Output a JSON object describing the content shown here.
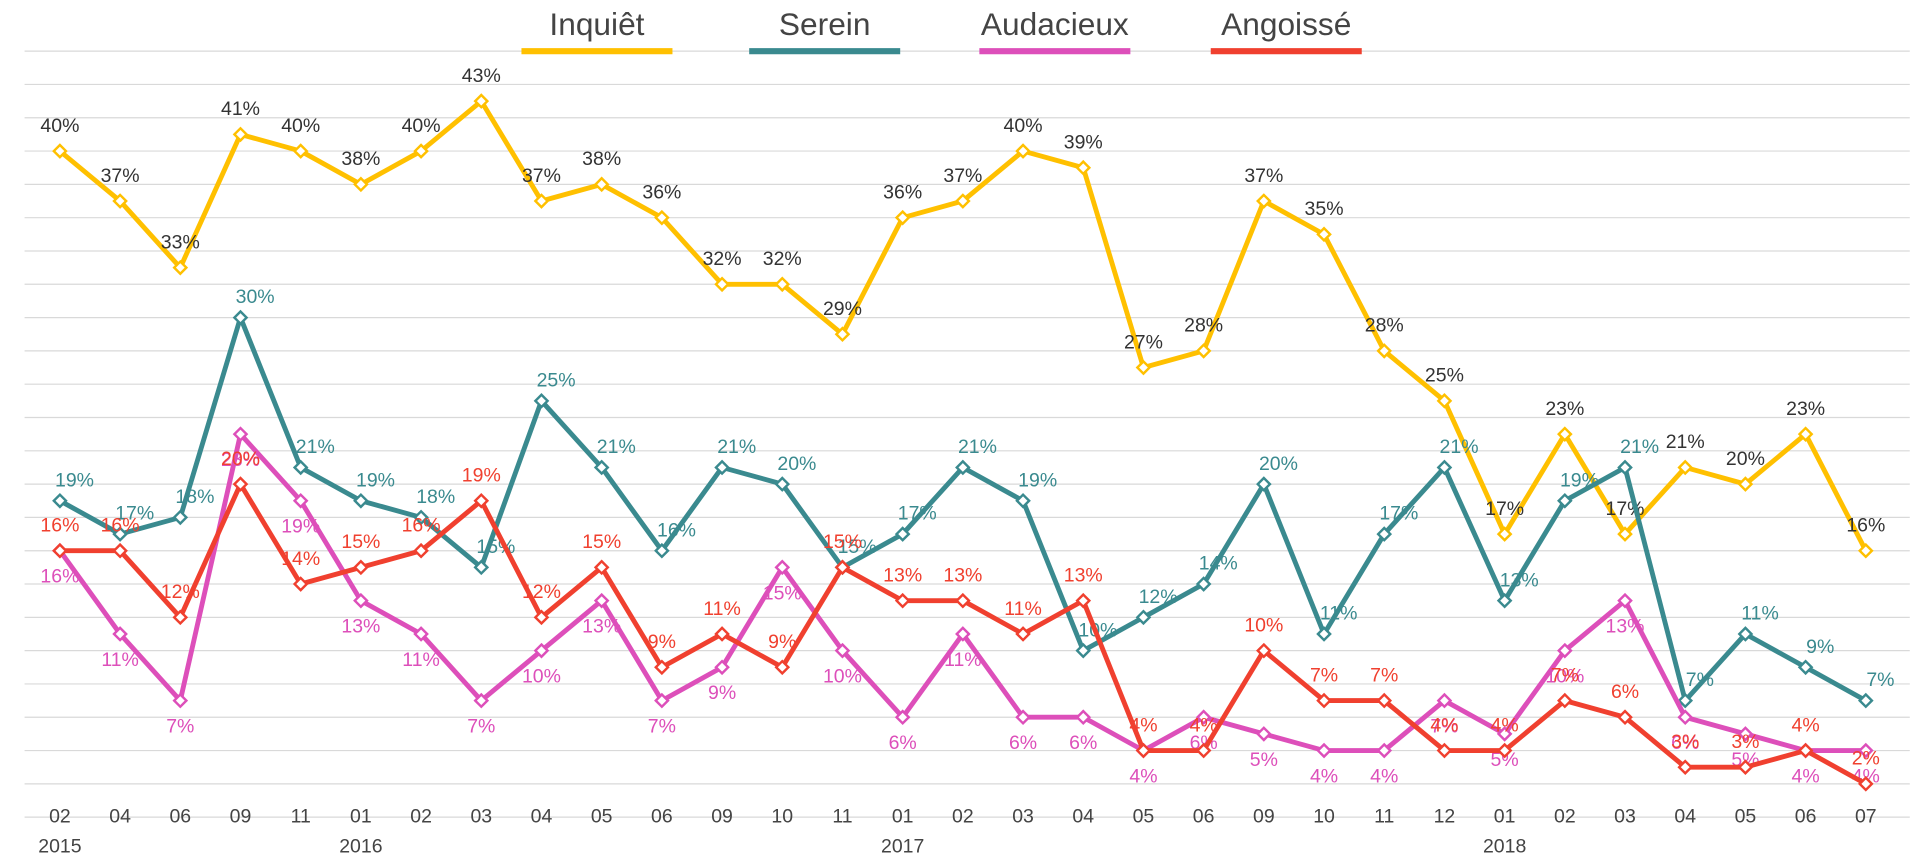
{
  "chart_data": {
    "type": "line",
    "categories": [
      "02",
      "04",
      "06",
      "09",
      "11",
      "01",
      "02",
      "03",
      "04",
      "05",
      "06",
      "09",
      "10",
      "11",
      "01",
      "02",
      "03",
      "04",
      "05",
      "06",
      "09",
      "10",
      "11",
      "12",
      "01",
      "02",
      "03",
      "04",
      "05",
      "06",
      "07"
    ],
    "year_labels": [
      "2015",
      null,
      null,
      null,
      null,
      "2016",
      null,
      null,
      null,
      null,
      null,
      null,
      null,
      null,
      "2017",
      null,
      null,
      null,
      null,
      null,
      null,
      null,
      null,
      null,
      "2018",
      null,
      null,
      null,
      null,
      null,
      null
    ],
    "ylim": [
      0,
      46
    ],
    "yticks": [
      0,
      2,
      4,
      6,
      8,
      10,
      12,
      14,
      16,
      18,
      20,
      22,
      24,
      26,
      28,
      30,
      32,
      34,
      36,
      38,
      40,
      42,
      44,
      46
    ],
    "grid": true,
    "series": [
      {
        "name": "Inquiêt",
        "color": "#ffc000",
        "label_color": "#333333",
        "values": [
          40,
          37,
          33,
          41,
          40,
          38,
          40,
          43,
          37,
          38,
          36,
          32,
          32,
          29,
          36,
          37,
          40,
          39,
          27,
          28,
          37,
          35,
          28,
          25,
          17,
          23,
          17,
          21,
          20,
          23,
          16
        ],
        "value_labels": [
          "40%",
          "37%",
          "33%",
          "41%",
          "40%",
          "38%",
          "40%",
          "43%",
          "37%",
          "38%",
          "36%",
          "32%",
          "32%",
          "29%",
          "36%",
          "37%",
          "40%",
          "39%",
          "27%",
          "28%",
          "37%",
          "35%",
          "28%",
          "25%",
          "17%",
          "23%",
          "17%",
          "21%",
          "20%",
          "23%",
          "16%"
        ]
      },
      {
        "name": "Serein",
        "color": "#3a8a8f",
        "label_color": "#3a8a8f",
        "values": [
          19,
          17,
          18,
          30,
          21,
          19,
          18,
          15,
          25,
          21,
          16,
          21,
          20,
          15,
          17,
          21,
          19,
          10,
          12,
          14,
          20,
          11,
          17,
          21,
          13,
          19,
          21,
          7,
          11,
          9,
          7
        ],
        "value_labels": [
          "19%",
          "17%",
          "18%",
          "30%",
          "21%",
          "19%",
          "18%",
          "15%",
          "25%",
          "21%",
          "16%",
          "21%",
          "20%",
          "15%",
          "17%",
          "21%",
          "19%",
          "10%",
          "12%",
          "14%",
          "20%",
          "11%",
          "17%",
          "21%",
          "13%",
          "19%",
          "21%",
          "7%",
          "11%",
          "9%",
          "7%"
        ]
      },
      {
        "name": "Audacieux",
        "color": "#dd4fba",
        "label_color": "#dd4fba",
        "values": [
          16,
          11,
          7,
          23,
          19,
          13,
          11,
          7,
          10,
          13,
          7,
          9,
          15,
          10,
          6,
          11,
          6,
          6,
          4,
          6,
          5,
          4,
          4,
          7,
          5,
          10,
          13,
          6,
          5,
          4,
          4
        ],
        "value_labels": [
          "16%",
          "11%",
          "7%",
          "23%",
          "19%",
          "13%",
          "11%",
          "7%",
          "10%",
          "13%",
          "7%",
          "9%",
          "15%",
          "10%",
          "6%",
          "11%",
          "6%",
          "6%",
          "4%",
          "6%",
          "5%",
          "4%",
          "4%",
          "7%",
          "5%",
          "10%",
          "13%",
          "6%",
          "5%",
          "4%",
          "4%"
        ]
      },
      {
        "name": "Angoissé",
        "color": "#f0402f",
        "label_color": "#f0402f",
        "values": [
          16,
          16,
          12,
          20,
          14,
          15,
          16,
          19,
          12,
          15,
          9,
          11,
          9,
          15,
          13,
          13,
          11,
          13,
          4,
          4,
          10,
          7,
          7,
          4,
          4,
          7,
          6,
          3,
          3,
          4,
          2
        ],
        "value_labels": [
          "16%",
          "16%",
          "12%",
          "20%",
          "14%",
          "15%",
          "16%",
          "19%",
          "12%",
          "15%",
          "9%",
          "11%",
          "9%",
          "15%",
          "13%",
          "13%",
          "11%",
          "13%",
          "4%",
          "4%",
          "10%",
          "7%",
          "7%",
          "4%",
          "4%",
          "7%",
          "6%",
          "3%",
          "3%",
          "4%",
          "2%"
        ]
      }
    ]
  }
}
